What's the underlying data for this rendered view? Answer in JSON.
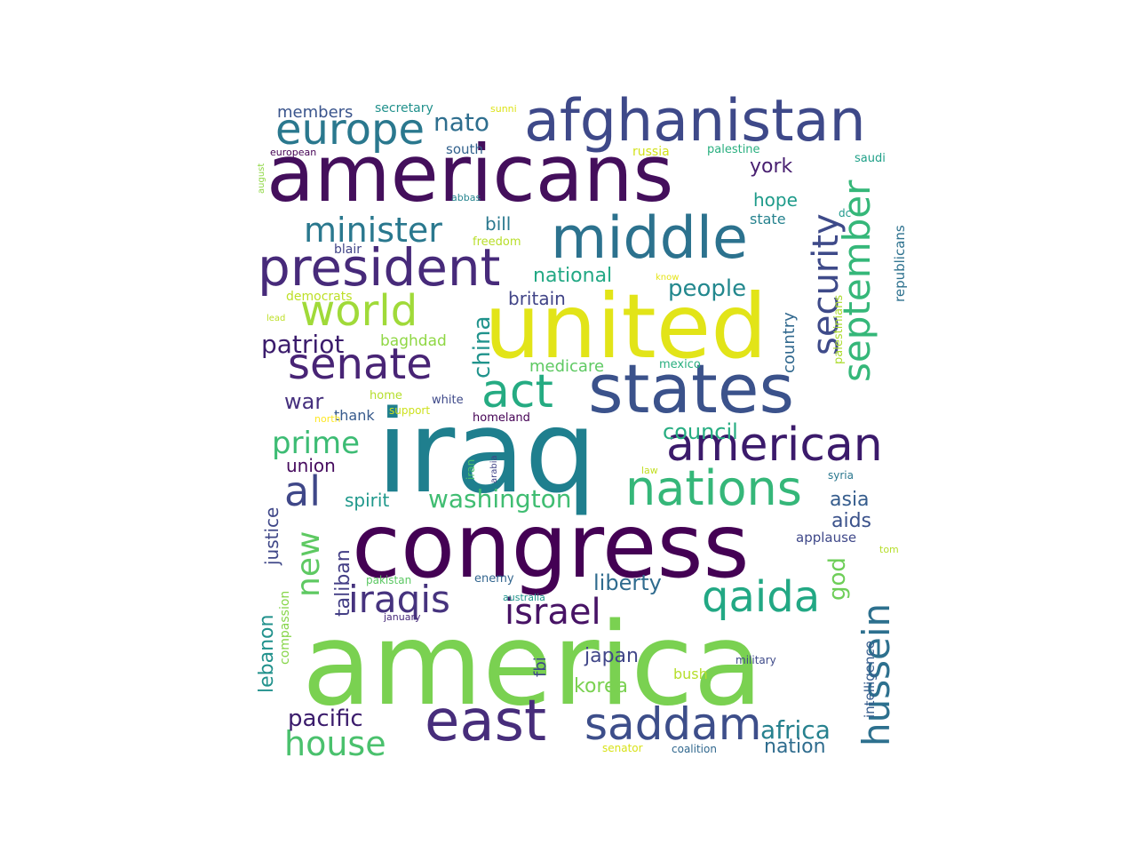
{
  "palette": {
    "dark_purple": "#440154",
    "purple": "#482878",
    "indigo": "#3e4989",
    "slate_blue": "#31688e",
    "teal": "#26828e",
    "sea_green": "#1f9e89",
    "green": "#35b779",
    "light_green": "#6ece58",
    "lime": "#b5de2b",
    "yellow": "#fde725"
  },
  "words": [
    {
      "text": "america",
      "color": "#7ad151",
      "rotate": false
    },
    {
      "text": "iraq",
      "color": "#1f7f8e",
      "rotate": false
    },
    {
      "text": "congress",
      "color": "#440154",
      "rotate": false
    },
    {
      "text": "united",
      "color": "#e2e418",
      "rotate": false
    },
    {
      "text": "americans",
      "color": "#440f5c",
      "rotate": false
    },
    {
      "text": "states",
      "color": "#3b528b",
      "rotate": false
    },
    {
      "text": "afghanistan",
      "color": "#3e4989",
      "rotate": false
    },
    {
      "text": "middle",
      "color": "#2c728e",
      "rotate": false
    },
    {
      "text": "east",
      "color": "#472d7b",
      "rotate": false
    },
    {
      "text": "president",
      "color": "#472a7a",
      "rotate": false
    },
    {
      "text": "nations",
      "color": "#35b779",
      "rotate": false
    },
    {
      "text": "american",
      "color": "#3b1a6b",
      "rotate": false
    },
    {
      "text": "saddam",
      "color": "#3d4e8a",
      "rotate": false
    },
    {
      "text": "europe",
      "color": "#2a788e",
      "rotate": false
    },
    {
      "text": "world",
      "color": "#a0da39",
      "rotate": false
    },
    {
      "text": "senate",
      "color": "#482475",
      "rotate": false
    },
    {
      "text": "act",
      "color": "#25ab82",
      "rotate": false
    },
    {
      "text": "qaida",
      "color": "#22a884",
      "rotate": false
    },
    {
      "text": "hussein",
      "color": "#2d708e",
      "rotate": true
    },
    {
      "text": "september",
      "color": "#35b779",
      "rotate": true
    },
    {
      "text": "security",
      "color": "#3e4a89",
      "rotate": true
    },
    {
      "text": "iraqis",
      "color": "#46337e",
      "rotate": false
    },
    {
      "text": "israel",
      "color": "#471365",
      "rotate": false
    },
    {
      "text": "al",
      "color": "#3f4788",
      "rotate": false
    },
    {
      "text": "house",
      "color": "#4ac16d",
      "rotate": false
    },
    {
      "text": "minister",
      "color": "#2a788e",
      "rotate": false
    },
    {
      "text": "nato",
      "color": "#2e6e8e",
      "rotate": false
    },
    {
      "text": "prime",
      "color": "#3dbc74",
      "rotate": false
    },
    {
      "text": "washington",
      "color": "#40bd72",
      "rotate": false
    },
    {
      "text": "new",
      "color": "#5ec962",
      "rotate": true
    },
    {
      "text": "patriot",
      "color": "#3b1c6c",
      "rotate": false
    },
    {
      "text": "africa",
      "color": "#26818e",
      "rotate": false
    },
    {
      "text": "liberty",
      "color": "#2f6b8e",
      "rotate": false
    },
    {
      "text": "council",
      "color": "#26ad81",
      "rotate": false
    },
    {
      "text": "people",
      "color": "#23888e",
      "rotate": false
    },
    {
      "text": "china",
      "color": "#20938c",
      "rotate": true
    },
    {
      "text": "god",
      "color": "#6ece58",
      "rotate": true
    },
    {
      "text": "pacific",
      "color": "#3b1c6c",
      "rotate": false
    },
    {
      "text": "war",
      "color": "#46307e",
      "rotate": false
    },
    {
      "text": "national",
      "color": "#22a884",
      "rotate": false
    },
    {
      "text": "nation",
      "color": "#2f6c8e",
      "rotate": false
    },
    {
      "text": "york",
      "color": "#481f70",
      "rotate": false
    },
    {
      "text": "asia",
      "color": "#365d8d",
      "rotate": false
    },
    {
      "text": "aids",
      "color": "#3b528b",
      "rotate": false
    },
    {
      "text": "japan",
      "color": "#404688",
      "rotate": false
    },
    {
      "text": "korea",
      "color": "#7ad151",
      "rotate": false
    },
    {
      "text": "taliban",
      "color": "#433e85",
      "rotate": true
    },
    {
      "text": "lebanon",
      "color": "#21918c",
      "rotate": true
    },
    {
      "text": "justice",
      "color": "#3f4788",
      "rotate": true
    },
    {
      "text": "britain",
      "color": "#414487",
      "rotate": false
    },
    {
      "text": "spirit",
      "color": "#1f988b",
      "rotate": false
    },
    {
      "text": "union",
      "color": "#460b5e",
      "rotate": false
    },
    {
      "text": "hope",
      "color": "#1e9b8a",
      "rotate": false
    },
    {
      "text": "bill",
      "color": "#2a788e",
      "rotate": false
    },
    {
      "text": "members",
      "color": "#3a548c",
      "rotate": false
    },
    {
      "text": "medicare",
      "color": "#5ec962",
      "rotate": false
    },
    {
      "text": "baghdad",
      "color": "#8fd744",
      "rotate": false
    },
    {
      "text": "country",
      "color": "#31688e",
      "rotate": true
    },
    {
      "text": "fbi",
      "color": "#3f4788",
      "rotate": true
    },
    {
      "text": "thank",
      "color": "#375a8c",
      "rotate": false
    },
    {
      "text": "south",
      "color": "#33628d",
      "rotate": false
    },
    {
      "text": "state",
      "color": "#26828e",
      "rotate": false
    },
    {
      "text": "bush",
      "color": "#b5de2b",
      "rotate": false
    },
    {
      "text": "applause",
      "color": "#3f4889",
      "rotate": false
    },
    {
      "text": "homeland",
      "color": "#440154",
      "rotate": false
    },
    {
      "text": "republicans",
      "color": "#2d718e",
      "rotate": true
    },
    {
      "text": "intelligence",
      "color": "#365c8d",
      "rotate": true
    },
    {
      "text": "compassion",
      "color": "#86d549",
      "rotate": true
    },
    {
      "text": "secretary",
      "color": "#21918c",
      "rotate": false
    },
    {
      "text": "russia",
      "color": "#d2e21b",
      "rotate": false
    },
    {
      "text": "democrats",
      "color": "#bddf26",
      "rotate": false
    },
    {
      "text": "palestine",
      "color": "#29af7f",
      "rotate": false
    },
    {
      "text": "freedom",
      "color": "#b8de29",
      "rotate": false
    },
    {
      "text": "blair",
      "color": "#414487",
      "rotate": false
    },
    {
      "text": "mexico",
      "color": "#29af7f",
      "rotate": false
    },
    {
      "text": "palestinians",
      "color": "#addc30",
      "rotate": true
    },
    {
      "text": "white",
      "color": "#3e4989",
      "rotate": false
    },
    {
      "text": "home",
      "color": "#b5de2b",
      "rotate": false
    },
    {
      "text": "support",
      "color": "#cde11d",
      "rotate": false
    },
    {
      "text": "north",
      "color": "#fde725",
      "rotate": false
    },
    {
      "text": "saudi",
      "color": "#1fa088",
      "rotate": false
    },
    {
      "text": "dc",
      "color": "#1f988b",
      "rotate": false
    },
    {
      "text": "senator",
      "color": "#d8e219",
      "rotate": false
    },
    {
      "text": "coalition",
      "color": "#31688e",
      "rotate": false
    },
    {
      "text": "military",
      "color": "#3e4a89",
      "rotate": false
    },
    {
      "text": "enemy",
      "color": "#32658e",
      "rotate": false
    },
    {
      "text": "pakistan",
      "color": "#5cc863",
      "rotate": false
    },
    {
      "text": "australia",
      "color": "#1f948c",
      "rotate": false
    },
    {
      "text": "january",
      "color": "#472a7a",
      "rotate": false
    },
    {
      "text": "european",
      "color": "#440154",
      "rotate": false
    },
    {
      "text": "august",
      "color": "#8fd744",
      "rotate": true
    },
    {
      "text": "abbas",
      "color": "#25848e",
      "rotate": false
    },
    {
      "text": "sunni",
      "color": "#dde318",
      "rotate": false
    },
    {
      "text": "know",
      "color": "#e5e419",
      "rotate": false
    },
    {
      "text": "lead",
      "color": "#bddf26",
      "rotate": false
    },
    {
      "text": "iran",
      "color": "#4ac16d",
      "rotate": true
    },
    {
      "text": "arabia",
      "color": "#414487",
      "rotate": true
    },
    {
      "text": "law",
      "color": "#c2df23",
      "rotate": false
    },
    {
      "text": "syria",
      "color": "#2a778e",
      "rotate": false
    },
    {
      "text": "tom",
      "color": "#b5de2b",
      "rotate": false
    }
  ]
}
